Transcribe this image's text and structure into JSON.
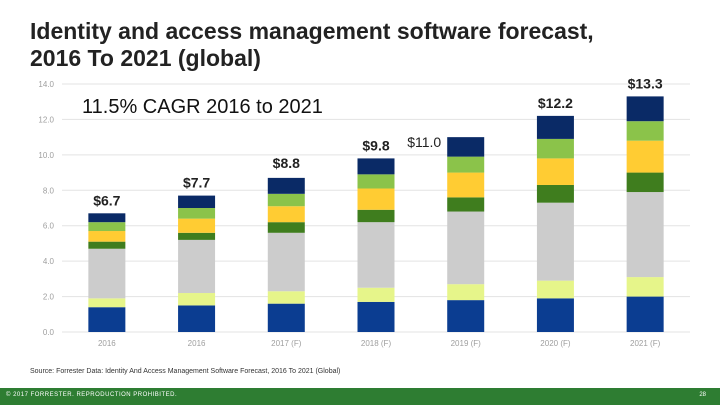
{
  "slide": {
    "title_line1": "Identity and access management software forecast,",
    "title_line2": "2016 To 2021 (global)",
    "cagr_text": "11.5% CAGR 2016 to 2021",
    "source": "Source: Forrester Data: Identity And Access Management Software Forecast, 2016 To 2021 (Global)",
    "copyright": "© 2017 FORRESTER. REPRODUCTION PROHIBITED.",
    "page_number": "28"
  },
  "chart_data": {
    "type": "bar",
    "stacked": true,
    "categories": [
      "2016",
      "2016",
      "2017 (F)",
      "2018 (F)",
      "2019 (F)",
      "2020 (F)",
      "2021 (F)"
    ],
    "totals": [
      6.7,
      7.7,
      8.8,
      9.8,
      11.0,
      12.2,
      13.3
    ],
    "total_labels": [
      "$6.7",
      "$7.7",
      "$8.8",
      "$9.8",
      "$11.0",
      "$12.2",
      "$13.3"
    ],
    "ylim": [
      0,
      14
    ],
    "yticks": [
      0,
      2,
      4,
      6,
      8,
      10,
      12,
      14
    ],
    "ytick_labels": [
      "0.0",
      "2.0",
      "4.0",
      "6.0",
      "8.0",
      "10.0",
      "12.0",
      "14.0"
    ],
    "grid": true,
    "legend": "none",
    "series": [
      {
        "color": "#0b3d91",
        "values": [
          1.4,
          1.5,
          1.6,
          1.7,
          1.8,
          1.9,
          2.0
        ]
      },
      {
        "color": "#e6f58a",
        "values": [
          0.5,
          0.7,
          0.7,
          0.8,
          0.9,
          1.0,
          1.1
        ]
      },
      {
        "color": "#cccccc",
        "values": [
          2.8,
          3.0,
          3.3,
          3.7,
          4.1,
          4.4,
          4.8
        ]
      },
      {
        "color": "#3f7d1e",
        "values": [
          0.4,
          0.4,
          0.6,
          0.7,
          0.8,
          1.0,
          1.1
        ]
      },
      {
        "color": "#ffcc33",
        "values": [
          0.6,
          0.8,
          0.9,
          1.2,
          1.4,
          1.5,
          1.8
        ]
      },
      {
        "color": "#8bc34a",
        "values": [
          0.5,
          0.6,
          0.7,
          0.8,
          0.9,
          1.1,
          1.1
        ]
      },
      {
        "color": "#0a2a66",
        "values": [
          0.5,
          0.7,
          0.9,
          0.9,
          1.1,
          1.3,
          1.4
        ]
      }
    ],
    "colors": {
      "axis_text": "#9e9e9e",
      "grid": "#e3e3e3",
      "label": "#222222"
    }
  }
}
